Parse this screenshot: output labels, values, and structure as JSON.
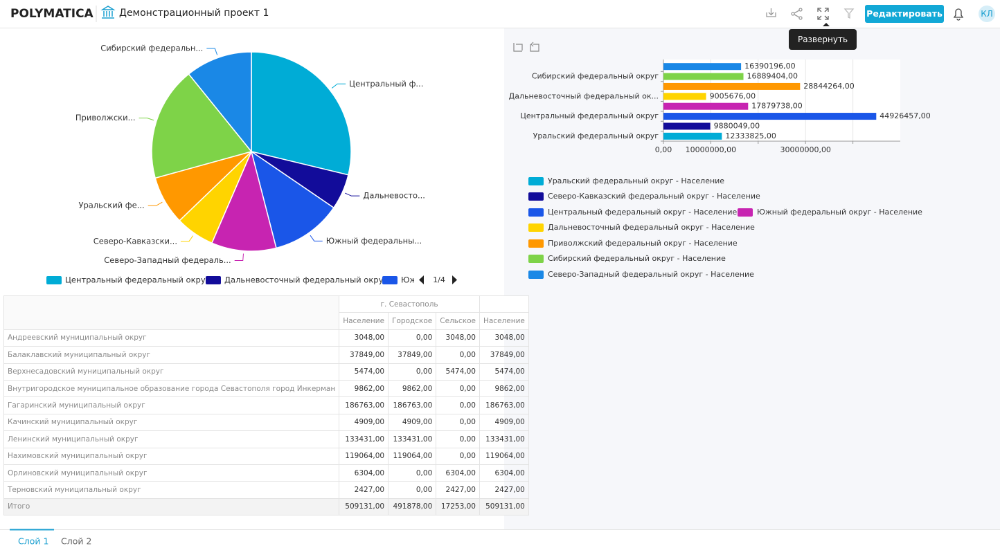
{
  "header": {
    "logo": "POLYMATICA",
    "project_title": "Демонстрационный проект 1",
    "edit_button": "Редактировать",
    "avatar": "КЛ",
    "tooltip": "Развернуть"
  },
  "pie_chart": {
    "type": "pie",
    "categories": [
      "Центральный ф...",
      "Дальневосто...",
      "Южный федеральны...",
      "Северо-Западный федераль...",
      "Северо-Кавказски...",
      "Уральский фе...",
      "Приволжски...",
      "Сибирский федеральн..."
    ],
    "values": [
      44926457,
      9005676,
      17879738,
      16390196,
      9880049,
      12333825,
      28844264,
      16889404
    ],
    "colors": [
      "#00acd6",
      "#120c9a",
      "#1a56e8",
      "#c724b1",
      "#ffd400",
      "#ff9800",
      "#7ed348",
      "#1a88e6"
    ],
    "legend": [
      "Центральный федеральный округ",
      "Дальневосточный федеральный округ",
      "Юж"
    ],
    "legend_page": "1/4"
  },
  "bar_chart": {
    "type": "bar",
    "orientation": "horizontal",
    "categories": [
      "Уральский федеральный округ",
      null,
      "Центральный федеральный округ",
      null,
      "Дальневосточный федеральный ок...",
      null,
      "Сибирский федеральный округ",
      null
    ],
    "values": [
      12333825,
      9880049,
      44926457,
      17879738,
      9005676,
      28844264,
      16889404,
      16390196
    ],
    "value_labels": [
      "12333825,00",
      "9880049,00",
      "44926457,00",
      "17879738,00",
      "9005676,00",
      "28844264,00",
      "16889404,00",
      "16390196,00"
    ],
    "colors": [
      "#00acd6",
      "#120c9a",
      "#1a56e8",
      "#c724b1",
      "#ffd400",
      "#ff9800",
      "#7ed348",
      "#1a88e6"
    ],
    "legend": [
      "Уральский федеральный округ - Население",
      "Северо-Кавказский федеральный округ - Население",
      "Центральный федеральный округ - Население",
      "Южный федеральный округ - Население",
      "Дальневосточный федеральный округ - Население",
      "Приволжский федеральный округ - Население",
      "Сибирский федеральный округ - Население",
      "Северо-Западный федеральный округ - Население"
    ],
    "xlim": [
      0,
      50000000
    ],
    "xticks": [
      {
        "value": 0,
        "label": "0,00"
      },
      {
        "value": 10000000,
        "label": "10000000,00"
      },
      {
        "value": 20000000,
        "label": null
      },
      {
        "value": 30000000,
        "label": "30000000,00"
      },
      {
        "value": 40000000,
        "label": null
      }
    ],
    "grid": true
  },
  "table": {
    "group_header": "г. Севастополь",
    "columns": [
      "Население",
      "Городское",
      "Сельское",
      "Население"
    ],
    "rows": [
      [
        "Андреевский муниципальный округ",
        "3048,00",
        "0,00",
        "3048,00",
        "3048,00"
      ],
      [
        "Балаклавский муниципальный округ",
        "37849,00",
        "37849,00",
        "0,00",
        "37849,00"
      ],
      [
        "Верхнесадовский муниципальный округ",
        "5474,00",
        "0,00",
        "5474,00",
        "5474,00"
      ],
      [
        "Внутригородское муниципальное образование города Севастополя город Инкерман",
        "9862,00",
        "9862,00",
        "0,00",
        "9862,00"
      ],
      [
        "Гагаринский муниципальный округ",
        "186763,00",
        "186763,00",
        "0,00",
        "186763,00"
      ],
      [
        "Качинский муниципальный округ",
        "4909,00",
        "4909,00",
        "0,00",
        "4909,00"
      ],
      [
        "Ленинский муниципальный округ",
        "133431,00",
        "133431,00",
        "0,00",
        "133431,00"
      ],
      [
        "Нахимовский муниципальный округ",
        "119064,00",
        "119064,00",
        "0,00",
        "119064,00"
      ],
      [
        "Орлиновский муниципальный округ",
        "6304,00",
        "0,00",
        "6304,00",
        "6304,00"
      ],
      [
        "Терновский муниципальный округ",
        "2427,00",
        "0,00",
        "2427,00",
        "2427,00"
      ],
      [
        "Итого",
        "509131,00",
        "491878,00",
        "17253,00",
        "509131,00"
      ]
    ]
  },
  "tabs": [
    "Слой 1",
    "Слой 2"
  ]
}
